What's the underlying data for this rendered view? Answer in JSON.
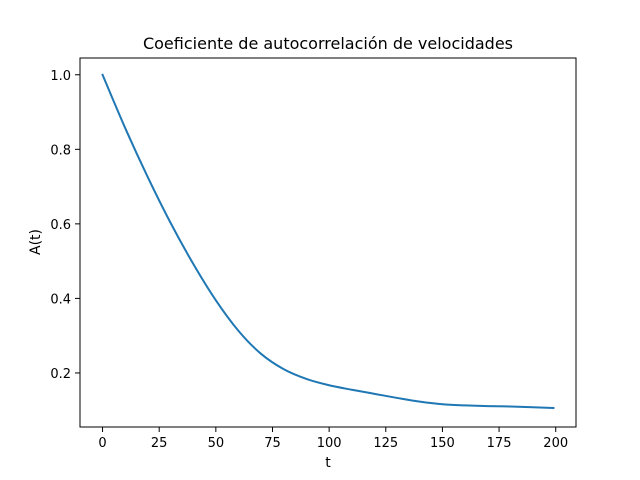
{
  "chart_data": {
    "type": "line",
    "title": "Coeficiente de autocorrelación de velocidades",
    "xlabel": "t",
    "ylabel": "A(t)",
    "xlim": [
      -9.95,
      208.95
    ],
    "ylim": [
      0.055,
      1.045
    ],
    "xticks": [
      0,
      25,
      50,
      75,
      100,
      125,
      150,
      175,
      200
    ],
    "yticks": [
      0.2,
      0.4,
      0.6,
      0.8,
      1.0
    ],
    "xtick_labels": [
      "0",
      "25",
      "50",
      "75",
      "100",
      "125",
      "150",
      "175",
      "200"
    ],
    "ytick_labels": [
      "0.2",
      "0.4",
      "0.6",
      "0.8",
      "1.0"
    ],
    "grid": false,
    "series": [
      {
        "color": "#1f77b4",
        "x": [
          0,
          10,
          20,
          30,
          40,
          50,
          60,
          70,
          80,
          90,
          100,
          110,
          120,
          130,
          140,
          150,
          160,
          170,
          180,
          190,
          199
        ],
        "y": [
          1.0,
          0.857,
          0.725,
          0.603,
          0.493,
          0.395,
          0.313,
          0.251,
          0.21,
          0.184,
          0.167,
          0.155,
          0.144,
          0.133,
          0.123,
          0.116,
          0.113,
          0.111,
          0.11,
          0.108,
          0.106
        ]
      }
    ]
  }
}
